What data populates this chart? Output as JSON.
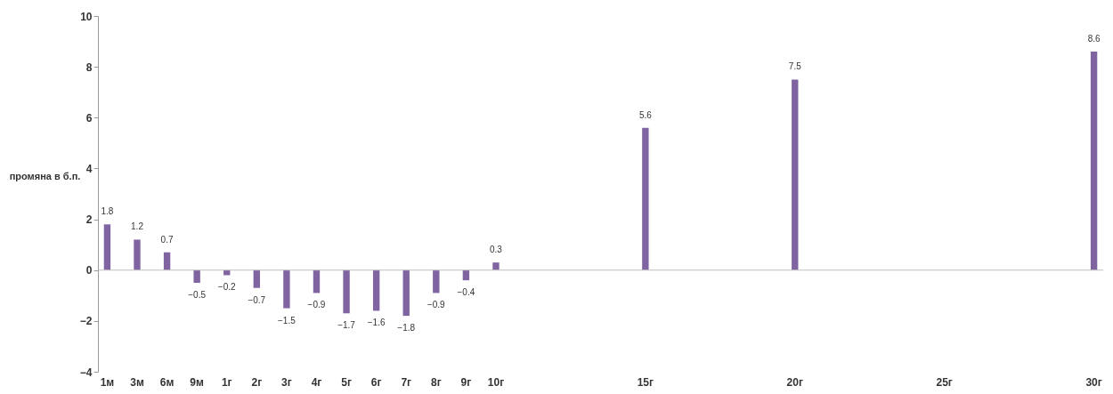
{
  "chart_data": {
    "type": "bar",
    "ylabel": "промяна в б.п.",
    "categories": [
      "1м",
      "3м",
      "6м",
      "9м",
      "1г",
      "2г",
      "3г",
      "4г",
      "5г",
      "6г",
      "7г",
      "8г",
      "9г",
      "10г",
      null,
      null,
      null,
      null,
      "15г",
      null,
      null,
      null,
      null,
      "20г",
      null,
      null,
      null,
      null,
      "25г",
      null,
      null,
      null,
      null,
      "30г"
    ],
    "values": [
      1.8,
      1.2,
      0.7,
      -0.5,
      -0.2,
      -0.7,
      -1.5,
      -0.9,
      -1.7,
      -1.6,
      -1.8,
      -0.9,
      -0.4,
      0.3,
      null,
      null,
      null,
      null,
      5.6,
      null,
      null,
      null,
      null,
      7.5,
      null,
      null,
      null,
      null,
      null,
      null,
      null,
      null,
      null,
      8.6
    ],
    "color": "#8064a2",
    "ylim": [
      -4,
      10
    ],
    "yticks": [
      -4,
      -2,
      0,
      2,
      4,
      6,
      8,
      10
    ],
    "grid": false,
    "data_labels": true,
    "ref_lines": [
      {
        "axis": "y",
        "value": 0,
        "color": "#bfbfbf"
      }
    ]
  }
}
